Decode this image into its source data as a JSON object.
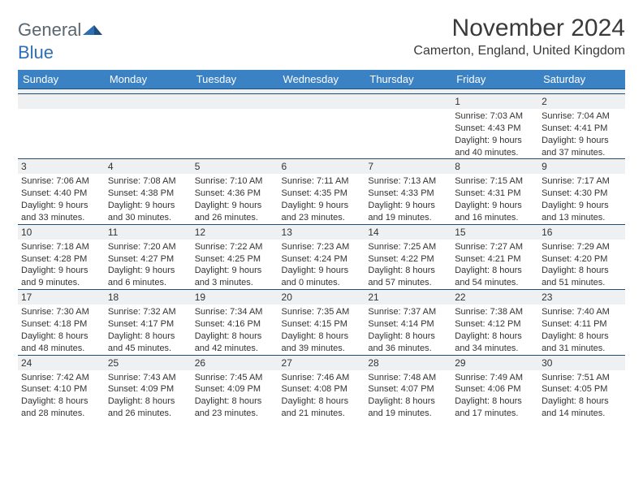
{
  "logo": {
    "word1": "General",
    "word2": "Blue"
  },
  "title": "November 2024",
  "location": "Camerton, England, United Kingdom",
  "colors": {
    "header_bg": "#3b82c4",
    "header_text": "#ffffff",
    "daynum_bg": "#eef0f2",
    "rule": "#1f4e79",
    "logo_gray": "#5a6670",
    "logo_blue": "#2e6fb4"
  },
  "day_headers": [
    "Sunday",
    "Monday",
    "Tuesday",
    "Wednesday",
    "Thursday",
    "Friday",
    "Saturday"
  ],
  "weeks": [
    [
      null,
      null,
      null,
      null,
      null,
      {
        "n": "1",
        "sunrise": "7:03 AM",
        "sunset": "4:43 PM",
        "daylight": "9 hours and 40 minutes."
      },
      {
        "n": "2",
        "sunrise": "7:04 AM",
        "sunset": "4:41 PM",
        "daylight": "9 hours and 37 minutes."
      }
    ],
    [
      {
        "n": "3",
        "sunrise": "7:06 AM",
        "sunset": "4:40 PM",
        "daylight": "9 hours and 33 minutes."
      },
      {
        "n": "4",
        "sunrise": "7:08 AM",
        "sunset": "4:38 PM",
        "daylight": "9 hours and 30 minutes."
      },
      {
        "n": "5",
        "sunrise": "7:10 AM",
        "sunset": "4:36 PM",
        "daylight": "9 hours and 26 minutes."
      },
      {
        "n": "6",
        "sunrise": "7:11 AM",
        "sunset": "4:35 PM",
        "daylight": "9 hours and 23 minutes."
      },
      {
        "n": "7",
        "sunrise": "7:13 AM",
        "sunset": "4:33 PM",
        "daylight": "9 hours and 19 minutes."
      },
      {
        "n": "8",
        "sunrise": "7:15 AM",
        "sunset": "4:31 PM",
        "daylight": "9 hours and 16 minutes."
      },
      {
        "n": "9",
        "sunrise": "7:17 AM",
        "sunset": "4:30 PM",
        "daylight": "9 hours and 13 minutes."
      }
    ],
    [
      {
        "n": "10",
        "sunrise": "7:18 AM",
        "sunset": "4:28 PM",
        "daylight": "9 hours and 9 minutes."
      },
      {
        "n": "11",
        "sunrise": "7:20 AM",
        "sunset": "4:27 PM",
        "daylight": "9 hours and 6 minutes."
      },
      {
        "n": "12",
        "sunrise": "7:22 AM",
        "sunset": "4:25 PM",
        "daylight": "9 hours and 3 minutes."
      },
      {
        "n": "13",
        "sunrise": "7:23 AM",
        "sunset": "4:24 PM",
        "daylight": "9 hours and 0 minutes."
      },
      {
        "n": "14",
        "sunrise": "7:25 AM",
        "sunset": "4:22 PM",
        "daylight": "8 hours and 57 minutes."
      },
      {
        "n": "15",
        "sunrise": "7:27 AM",
        "sunset": "4:21 PM",
        "daylight": "8 hours and 54 minutes."
      },
      {
        "n": "16",
        "sunrise": "7:29 AM",
        "sunset": "4:20 PM",
        "daylight": "8 hours and 51 minutes."
      }
    ],
    [
      {
        "n": "17",
        "sunrise": "7:30 AM",
        "sunset": "4:18 PM",
        "daylight": "8 hours and 48 minutes."
      },
      {
        "n": "18",
        "sunrise": "7:32 AM",
        "sunset": "4:17 PM",
        "daylight": "8 hours and 45 minutes."
      },
      {
        "n": "19",
        "sunrise": "7:34 AM",
        "sunset": "4:16 PM",
        "daylight": "8 hours and 42 minutes."
      },
      {
        "n": "20",
        "sunrise": "7:35 AM",
        "sunset": "4:15 PM",
        "daylight": "8 hours and 39 minutes."
      },
      {
        "n": "21",
        "sunrise": "7:37 AM",
        "sunset": "4:14 PM",
        "daylight": "8 hours and 36 minutes."
      },
      {
        "n": "22",
        "sunrise": "7:38 AM",
        "sunset": "4:12 PM",
        "daylight": "8 hours and 34 minutes."
      },
      {
        "n": "23",
        "sunrise": "7:40 AM",
        "sunset": "4:11 PM",
        "daylight": "8 hours and 31 minutes."
      }
    ],
    [
      {
        "n": "24",
        "sunrise": "7:42 AM",
        "sunset": "4:10 PM",
        "daylight": "8 hours and 28 minutes."
      },
      {
        "n": "25",
        "sunrise": "7:43 AM",
        "sunset": "4:09 PM",
        "daylight": "8 hours and 26 minutes."
      },
      {
        "n": "26",
        "sunrise": "7:45 AM",
        "sunset": "4:09 PM",
        "daylight": "8 hours and 23 minutes."
      },
      {
        "n": "27",
        "sunrise": "7:46 AM",
        "sunset": "4:08 PM",
        "daylight": "8 hours and 21 minutes."
      },
      {
        "n": "28",
        "sunrise": "7:48 AM",
        "sunset": "4:07 PM",
        "daylight": "8 hours and 19 minutes."
      },
      {
        "n": "29",
        "sunrise": "7:49 AM",
        "sunset": "4:06 PM",
        "daylight": "8 hours and 17 minutes."
      },
      {
        "n": "30",
        "sunrise": "7:51 AM",
        "sunset": "4:05 PM",
        "daylight": "8 hours and 14 minutes."
      }
    ]
  ],
  "labels": {
    "sunrise": "Sunrise:",
    "sunset": "Sunset:",
    "daylight": "Daylight:"
  }
}
